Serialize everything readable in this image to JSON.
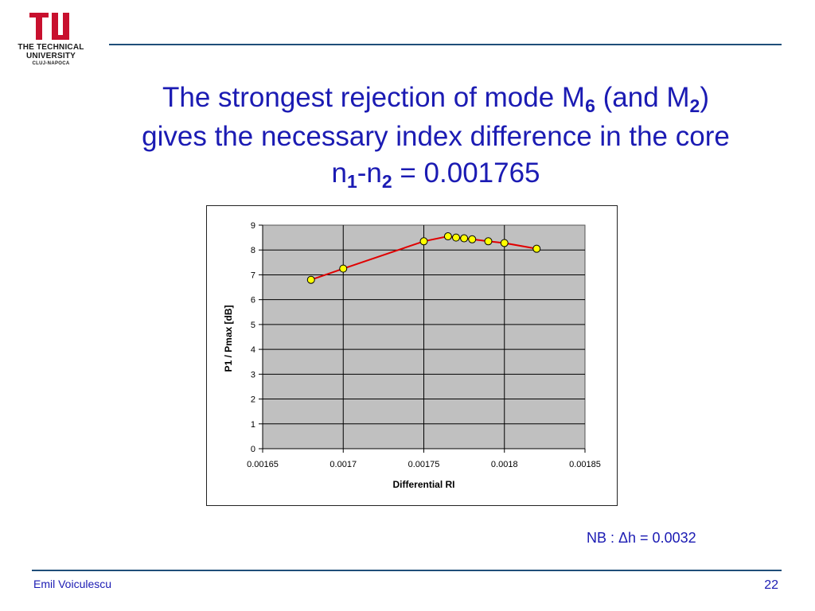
{
  "logo": {
    "line1": "THE TECHNICAL",
    "line2": "UNIVERSITY",
    "line3": "CLUJ-NAPOCA"
  },
  "title": {
    "line1_pre": "The strongest rejection of mode M",
    "line1_sub1": "6",
    "line1_mid": " (and M",
    "line1_sub2": "2",
    "line1_post": ")",
    "line2": "gives the necessary  index difference in the core",
    "line3_pre": "n",
    "line3_sub1": "1",
    "line3_mid": "-n",
    "line3_sub2": "2",
    "line3_post": " = 0.001765"
  },
  "note": "NB :  Δh = 0.0032",
  "footer": {
    "author": "Emil Voiculescu",
    "page": "22"
  },
  "colors": {
    "accent": "#1b1bb3",
    "rule": "#1f4e79",
    "plot_bg": "#c0c0c0",
    "line": "#e00000",
    "marker": "#ffff00"
  },
  "chart_data": {
    "type": "line",
    "title": "",
    "xlabel": "Differential RI",
    "ylabel": "P1 / Pmax [dB]",
    "xlim": [
      0.00165,
      0.00185
    ],
    "ylim": [
      0,
      9
    ],
    "x_ticks": [
      "0.00165",
      "0.0017",
      "0.00175",
      "0.0018",
      "0.00185"
    ],
    "y_ticks": [
      "0",
      "1",
      "2",
      "3",
      "4",
      "5",
      "6",
      "7",
      "8",
      "9"
    ],
    "grid": true,
    "legend": "none",
    "series": [
      {
        "x": [
          0.00168,
          0.0017,
          0.00175,
          0.001765,
          0.00177,
          0.001775,
          0.00178,
          0.00179,
          0.0018,
          0.00182
        ],
        "y": [
          6.8,
          7.25,
          8.35,
          8.55,
          8.5,
          8.47,
          8.43,
          8.35,
          8.28,
          8.05
        ]
      }
    ]
  }
}
